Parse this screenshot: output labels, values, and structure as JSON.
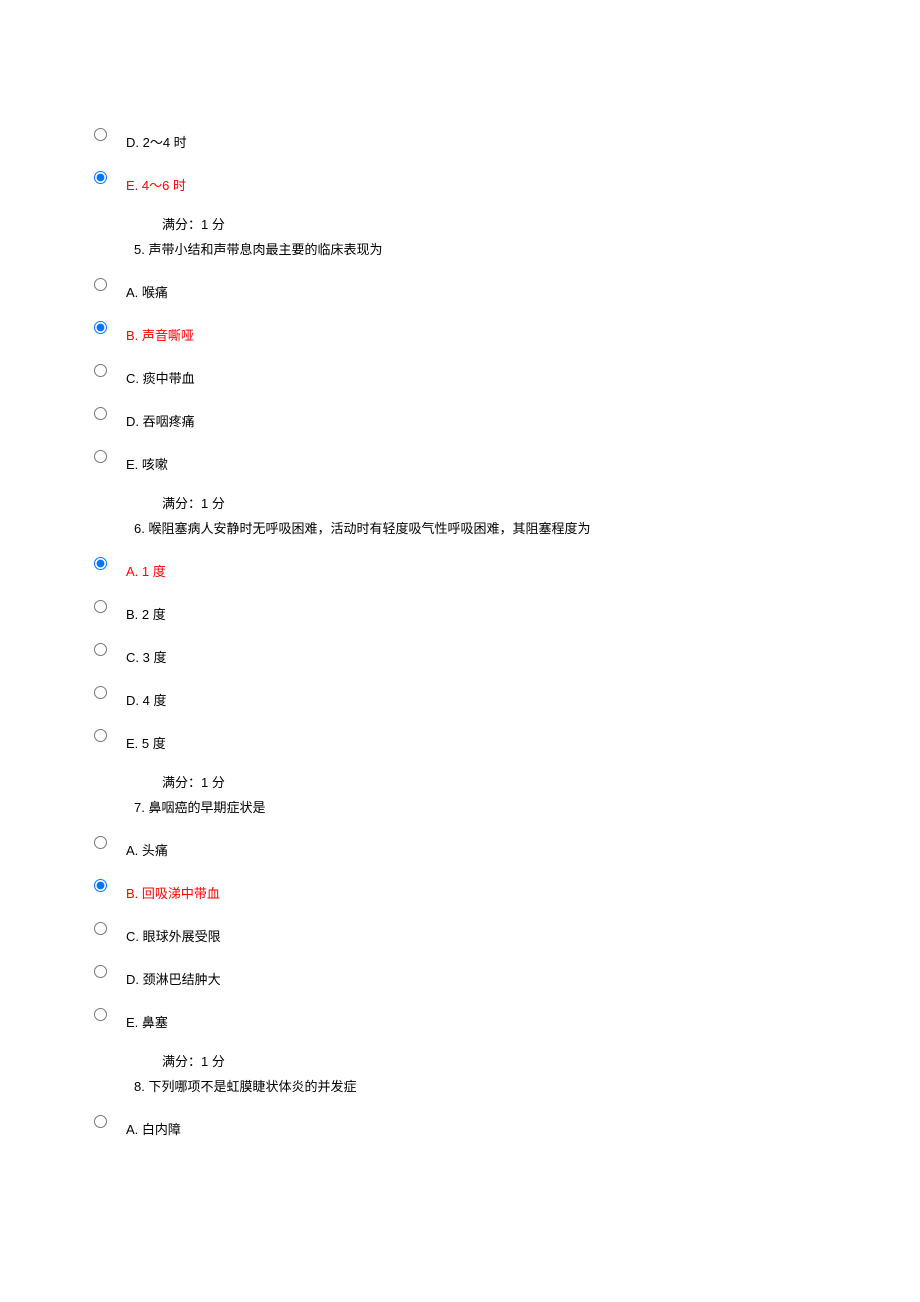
{
  "items": [
    {
      "type": "option",
      "letter": "D",
      "text": "D. 2～4 时",
      "selected": false,
      "correct": false
    },
    {
      "type": "option",
      "letter": "E",
      "text": "E. 4～6 时",
      "selected": true,
      "correct": true
    },
    {
      "type": "score",
      "text": "满分：1 分"
    },
    {
      "type": "question",
      "number": "5",
      "text": "5.  声带小结和声带息肉最主要的临床表现为"
    },
    {
      "type": "option",
      "letter": "A",
      "text": "A.  喉痛",
      "selected": false,
      "correct": false
    },
    {
      "type": "option",
      "letter": "B",
      "text": "B.  声音嘶哑",
      "selected": true,
      "correct": true
    },
    {
      "type": "option",
      "letter": "C",
      "text": "C.  痰中带血",
      "selected": false,
      "correct": false
    },
    {
      "type": "option",
      "letter": "D",
      "text": "D.  吞咽疼痛",
      "selected": false,
      "correct": false
    },
    {
      "type": "option",
      "letter": "E",
      "text": "E.  咳嗽",
      "selected": false,
      "correct": false
    },
    {
      "type": "score",
      "text": "满分：1 分"
    },
    {
      "type": "question",
      "number": "6",
      "text": "6.  喉阻塞病人安静时无呼吸困难，活动时有轻度吸气性呼吸困难，其阻塞程度为"
    },
    {
      "type": "option",
      "letter": "A",
      "text": "A. 1 度",
      "selected": true,
      "correct": true
    },
    {
      "type": "option",
      "letter": "B",
      "text": "B. 2 度",
      "selected": false,
      "correct": false
    },
    {
      "type": "option",
      "letter": "C",
      "text": "C. 3 度",
      "selected": false,
      "correct": false
    },
    {
      "type": "option",
      "letter": "D",
      "text": "D. 4 度",
      "selected": false,
      "correct": false
    },
    {
      "type": "option",
      "letter": "E",
      "text": "E. 5 度",
      "selected": false,
      "correct": false
    },
    {
      "type": "score",
      "text": "满分：1 分"
    },
    {
      "type": "question",
      "number": "7",
      "text": "7.  鼻咽癌的早期症状是"
    },
    {
      "type": "option",
      "letter": "A",
      "text": "A.  头痛",
      "selected": false,
      "correct": false
    },
    {
      "type": "option",
      "letter": "B",
      "text": "B.  回吸涕中带血",
      "selected": true,
      "correct": true
    },
    {
      "type": "option",
      "letter": "C",
      "text": "C.  眼球外展受限",
      "selected": false,
      "correct": false
    },
    {
      "type": "option",
      "letter": "D",
      "text": "D.  颈淋巴结肿大",
      "selected": false,
      "correct": false
    },
    {
      "type": "option",
      "letter": "E",
      "text": "E.  鼻塞",
      "selected": false,
      "correct": false
    },
    {
      "type": "score",
      "text": "满分：1 分"
    },
    {
      "type": "question",
      "number": "8",
      "text": "8.  下列哪项不是虹膜睫状体炎的并发症"
    },
    {
      "type": "option",
      "letter": "A",
      "text": "A.  白内障",
      "selected": false,
      "correct": false
    }
  ],
  "colors": {
    "text": "#000000",
    "correct": "#ff0000",
    "background": "#ffffff"
  }
}
